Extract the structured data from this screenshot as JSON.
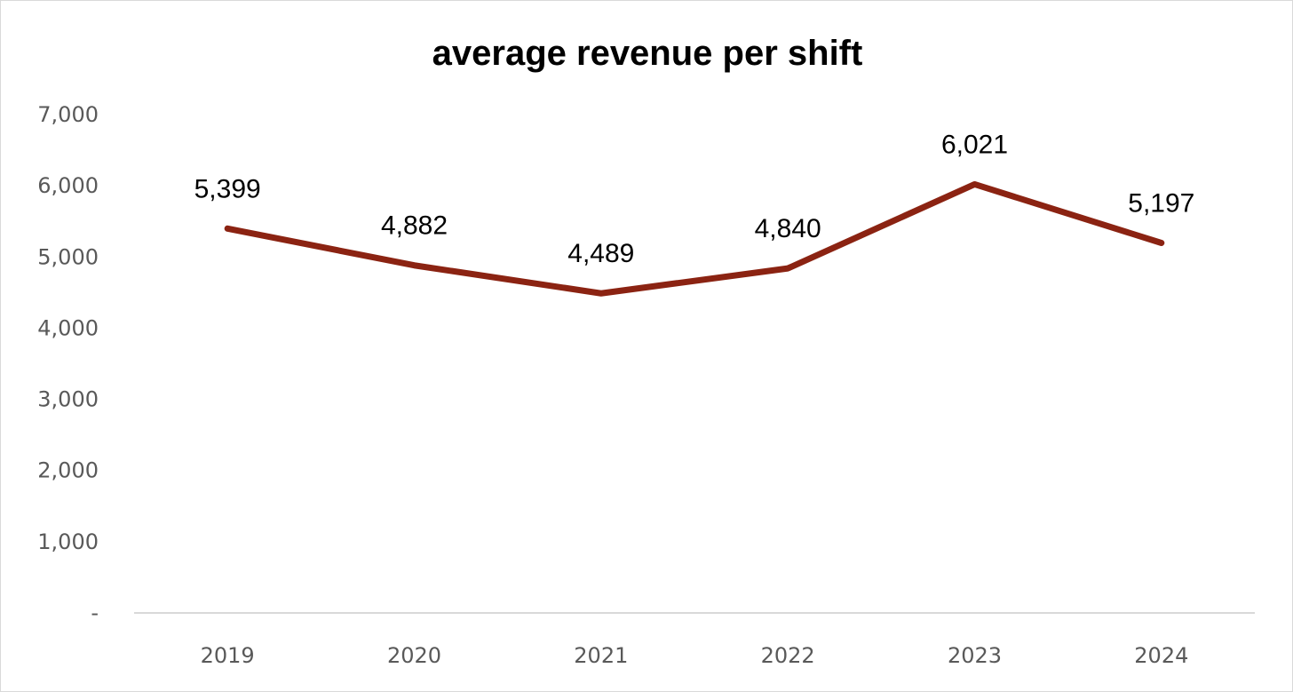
{
  "chart_data": {
    "type": "line",
    "title": "average revenue per shift",
    "xlabel": "",
    "ylabel": "",
    "categories": [
      "2019",
      "2020",
      "2021",
      "2022",
      "2023",
      "2024"
    ],
    "series": [
      {
        "values": [
          5399,
          4882,
          4489,
          4840,
          6021,
          5197
        ],
        "data_labels": [
          "5,399",
          "4,882",
          "4,489",
          "4,840",
          "6,021",
          "5,197"
        ],
        "color": "#8B2312"
      }
    ],
    "ylim": [
      0,
      7000
    ],
    "yticks": [
      0,
      1000,
      2000,
      3000,
      4000,
      5000,
      6000,
      7000
    ],
    "ytick_labels": [
      "-",
      "1,000",
      "2,000",
      "3,000",
      "4,000",
      "5,000",
      "6,000",
      "7,000"
    ],
    "grid": false,
    "legend": "none",
    "colors": {
      "line": "#8B2312",
      "axis": "#d9d9d9",
      "tick_text": "#595959",
      "title_text": "#000000",
      "label_text": "#000000"
    }
  }
}
